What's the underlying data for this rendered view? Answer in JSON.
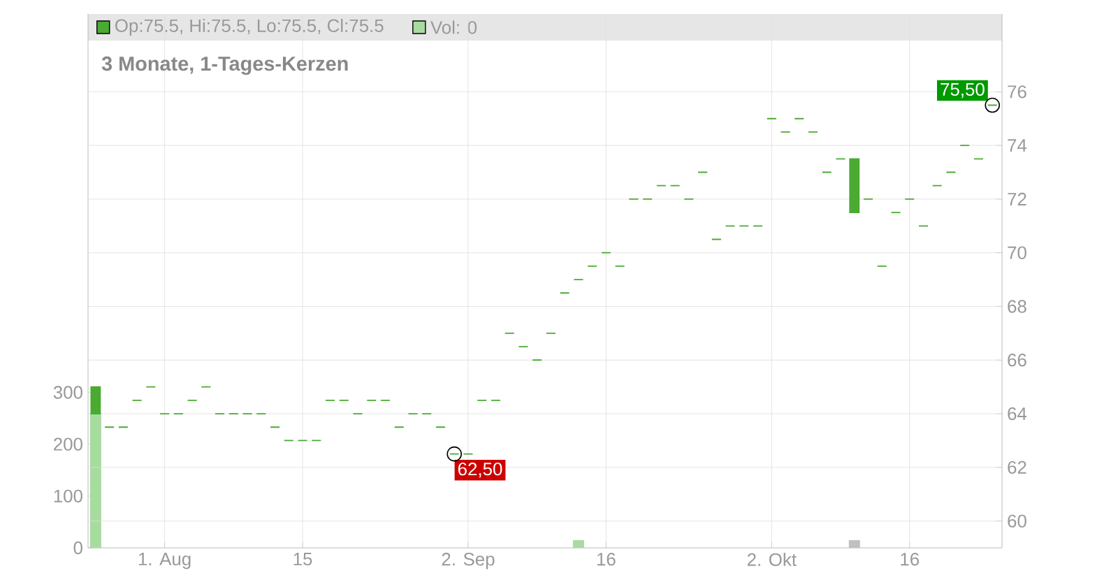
{
  "chart_data": {
    "type": "candlestick",
    "title": "3 Monate, 1-Tages-Kerzen",
    "categories": [
      null,
      null,
      null,
      null,
      null,
      "1. Aug",
      null,
      null,
      null,
      null,
      null,
      null,
      null,
      null,
      null,
      "15",
      null,
      null,
      null,
      null,
      null,
      null,
      null,
      null,
      null,
      null,
      null,
      "2. Sep",
      null,
      null,
      null,
      null,
      null,
      null,
      null,
      null,
      null,
      "16",
      null,
      null,
      null,
      null,
      null,
      null,
      null,
      null,
      null,
      null,
      null,
      "2. Okt",
      null,
      null,
      null,
      null,
      null,
      null,
      null,
      null,
      null,
      "16",
      null,
      null,
      null,
      null,
      null,
      null
    ],
    "series": [
      {
        "type": "candlestick",
        "name": "Op:75.5, Hi:75.5, Lo:75.5, Cl:75.5",
        "color": "#4aaa32",
        "axis": "y2",
        "ohlc": [
          [
            64,
            65,
            64,
            65
          ],
          [
            63.5,
            63.5,
            63.5,
            63.5
          ],
          [
            63.5,
            63.5,
            63.5,
            63.5
          ],
          [
            64.5,
            64.5,
            64.5,
            64.5
          ],
          [
            65,
            65,
            65,
            65
          ],
          [
            64,
            64,
            64,
            64
          ],
          [
            64,
            64,
            64,
            64
          ],
          [
            64.5,
            64.5,
            64.5,
            64.5
          ],
          [
            65,
            65,
            65,
            65
          ],
          [
            64,
            64,
            64,
            64
          ],
          [
            64,
            64,
            64,
            64
          ],
          [
            64,
            64,
            64,
            64
          ],
          [
            64,
            64,
            64,
            64
          ],
          [
            63.5,
            63.5,
            63.5,
            63.5
          ],
          [
            63,
            63,
            63,
            63
          ],
          [
            63,
            63,
            63,
            63
          ],
          [
            63,
            63,
            63,
            63
          ],
          [
            64.5,
            64.5,
            64.5,
            64.5
          ],
          [
            64.5,
            64.5,
            64.5,
            64.5
          ],
          [
            64,
            64,
            64,
            64
          ],
          [
            64.5,
            64.5,
            64.5,
            64.5
          ],
          [
            64.5,
            64.5,
            64.5,
            64.5
          ],
          [
            63.5,
            63.5,
            63.5,
            63.5
          ],
          [
            64,
            64,
            64,
            64
          ],
          [
            64,
            64,
            64,
            64
          ],
          [
            63.5,
            63.5,
            63.5,
            63.5
          ],
          [
            62.5,
            62.5,
            62.5,
            62.5
          ],
          [
            62.5,
            62.5,
            62.5,
            62.5
          ],
          [
            64.5,
            64.5,
            64.5,
            64.5
          ],
          [
            64.5,
            64.5,
            64.5,
            64.5
          ],
          [
            67,
            67,
            67,
            67
          ],
          [
            66.5,
            66.5,
            66.5,
            66.5
          ],
          [
            66,
            66,
            66,
            66
          ],
          [
            67,
            67,
            67,
            67
          ],
          [
            68.5,
            68.5,
            68.5,
            68.5
          ],
          [
            69,
            69,
            69,
            69
          ],
          [
            69.5,
            69.5,
            69.5,
            69.5
          ],
          [
            70,
            70,
            70,
            70
          ],
          [
            69.5,
            69.5,
            69.5,
            69.5
          ],
          [
            72,
            72,
            72,
            72
          ],
          [
            72,
            72,
            72,
            72
          ],
          [
            72.5,
            72.5,
            72.5,
            72.5
          ],
          [
            72.5,
            72.5,
            72.5,
            72.5
          ],
          [
            72,
            72,
            72,
            72
          ],
          [
            73,
            73,
            73,
            73
          ],
          [
            70.5,
            70.5,
            70.5,
            70.5
          ],
          [
            71,
            71,
            71,
            71
          ],
          [
            71,
            71,
            71,
            71
          ],
          [
            71,
            71,
            71,
            71
          ],
          [
            75,
            75,
            75,
            75
          ],
          [
            74.5,
            74.5,
            74.5,
            74.5
          ],
          [
            75,
            75,
            75,
            75
          ],
          [
            74.5,
            74.5,
            74.5,
            74.5
          ],
          [
            73,
            73,
            73,
            73
          ],
          [
            73.5,
            73.5,
            73.5,
            73.5
          ],
          [
            71.5,
            73.5,
            71.5,
            73.5
          ],
          [
            72,
            72,
            72,
            72
          ],
          [
            69.5,
            69.5,
            69.5,
            69.5
          ],
          [
            71.5,
            71.5,
            71.5,
            71.5
          ],
          [
            72,
            72,
            72,
            72
          ],
          [
            71,
            71,
            71,
            71
          ],
          [
            72.5,
            72.5,
            72.5,
            72.5
          ],
          [
            73,
            73,
            73,
            73
          ],
          [
            74,
            74,
            74,
            74
          ],
          [
            73.5,
            73.5,
            73.5,
            73.5
          ],
          [
            75.5,
            75.5,
            75.5,
            75.5
          ]
        ]
      },
      {
        "type": "bar",
        "name": "Vol: 0",
        "color": "#a8dba0",
        "colors": [
          "#a8dba0",
          "#a8dba0",
          "#a8dba0",
          "#a8dba0",
          "#a8dba0",
          "#a8dba0",
          "#a8dba0",
          "#a8dba0",
          "#a8dba0",
          "#a8dba0",
          "#a8dba0",
          "#a8dba0",
          "#a8dba0",
          "#a8dba0",
          "#a8dba0",
          "#a8dba0",
          "#a8dba0",
          "#a8dba0",
          "#a8dba0",
          "#a8dba0",
          "#a8dba0",
          "#a8dba0",
          "#a8dba0",
          "#a8dba0",
          "#a8dba0",
          "#a8dba0",
          "#a8dba0",
          "#a8dba0",
          "#a8dba0",
          "#a8dba0",
          "#a8dba0",
          "#a8dba0",
          "#a8dba0",
          "#a8dba0",
          "#a8dba0",
          "#a8dba0",
          "#a8dba0",
          "#a8dba0",
          "#a8dba0",
          "#a8dba0",
          "#a8dba0",
          "#a8dba0",
          "#a8dba0",
          "#a8dba0",
          "#a8dba0",
          "#a8dba0",
          "#a8dba0",
          "#a8dba0",
          "#a8dba0",
          "#a8dba0",
          "#a8dba0",
          "#a8dba0",
          "#a8dba0",
          "#a8dba0",
          "#a8dba0",
          "#c0c0c0",
          "#a8dba0",
          "#a8dba0",
          "#a8dba0",
          "#a8dba0",
          "#a8dba0",
          "#a8dba0",
          "#a8dba0",
          "#a8dba0",
          "#a8dba0",
          "#a8dba0"
        ],
        "values": [
          260,
          0,
          0,
          0,
          0,
          0,
          0,
          0,
          0,
          0,
          0,
          0,
          0,
          0,
          0,
          0,
          0,
          0,
          0,
          0,
          0,
          0,
          0,
          0,
          0,
          0,
          0,
          0,
          0,
          0,
          0,
          0,
          0,
          0,
          0,
          15,
          0,
          0,
          0,
          0,
          0,
          0,
          0,
          0,
          0,
          0,
          0,
          0,
          0,
          0,
          0,
          0,
          0,
          0,
          0,
          15,
          0,
          0,
          0,
          0,
          0,
          0,
          0,
          0,
          0,
          0
        ]
      }
    ],
    "ylim": [
      0,
      1030
    ],
    "yticks": [
      0,
      100,
      200,
      300
    ],
    "y2lim": [
      59,
      78.9
    ],
    "y2ticks": [
      60,
      62,
      64,
      66,
      68,
      70,
      72,
      74,
      76
    ],
    "annotations": [
      "62,50",
      "75,50"
    ],
    "grid": true,
    "legend": "top left"
  }
}
